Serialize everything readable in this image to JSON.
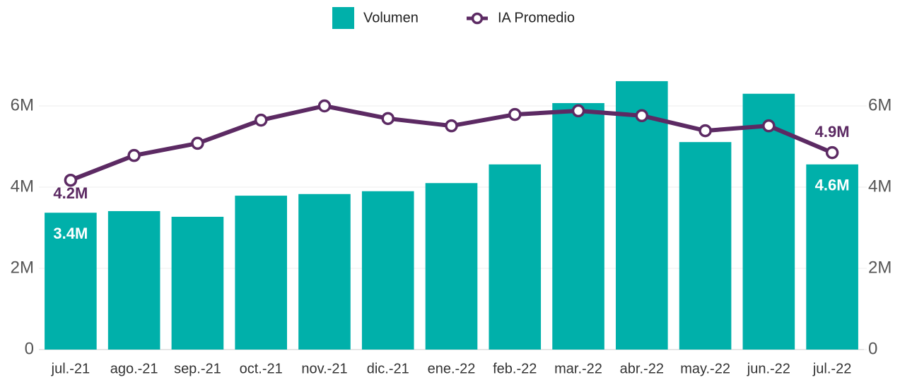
{
  "chart_data": {
    "type": "bar_line",
    "categories": [
      "jul.-21",
      "ago.-21",
      "sep.-21",
      "oct.-21",
      "nov.-21",
      "dic.-21",
      "ene.-22",
      "feb.-22",
      "mar.-22",
      "abr.-22",
      "may.-22",
      "jun.-22",
      "jul.-22"
    ],
    "series": [
      {
        "name": "Volumen",
        "type": "bar",
        "color": "#00b0aa",
        "values": [
          3370000,
          3410000,
          3270000,
          3790000,
          3830000,
          3900000,
          4100000,
          4560000,
          6070000,
          6610000,
          5110000,
          6300000,
          4560000
        ],
        "value_labels": [
          "3.4M",
          null,
          null,
          null,
          null,
          null,
          null,
          null,
          null,
          null,
          null,
          null,
          "4.6M"
        ]
      },
      {
        "name": "IA Promedio",
        "type": "line",
        "axis": "y2",
        "color": "#5c2a63",
        "values": [
          4170000,
          4780000,
          5080000,
          5650000,
          6000000,
          5690000,
          5510000,
          5790000,
          5880000,
          5760000,
          5390000,
          5510000,
          4850000
        ],
        "value_labels": [
          "4.2M",
          null,
          null,
          null,
          null,
          null,
          null,
          null,
          null,
          null,
          null,
          null,
          "4.9M"
        ]
      }
    ],
    "ylim": [
      0,
      7000000
    ],
    "yticks": [
      0,
      {
        "value": 2000000,
        "label": "2M"
      },
      {
        "value": 4000000,
        "label": "4M"
      },
      {
        "value": 6000000,
        "label": "6M"
      }
    ],
    "y2lim": [
      0,
      7000000
    ],
    "y2ticks": [
      0,
      {
        "value": 2000000,
        "label": "2M"
      },
      {
        "value": 4000000,
        "label": "4M"
      },
      {
        "value": 6000000,
        "label": "6M"
      }
    ],
    "grid": true,
    "legend": "top"
  }
}
